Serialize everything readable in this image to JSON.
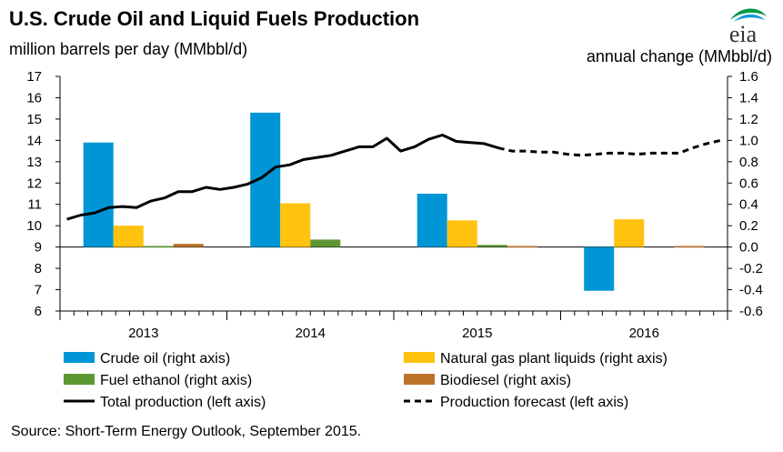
{
  "chart_data": {
    "type": "bar",
    "title": "U.S. Crude Oil and Liquid Fuels Production",
    "ylabel_left": "million barrels per day (MMbbl/d)",
    "ylabel_right": "annual change (MMbbl/d)",
    "source": "Source: Short-Term Energy Outlook, September 2015.",
    "logo_text": "eia",
    "ylim_left": [
      6,
      17
    ],
    "ylim_right": [
      -0.6,
      1.6
    ],
    "left_ticks": [
      "6",
      "7",
      "8",
      "9",
      "10",
      "11",
      "12",
      "13",
      "14",
      "15",
      "16",
      "17"
    ],
    "right_ticks": [
      "-0.6",
      "-0.4",
      "-0.2",
      "0.0",
      "0.2",
      "0.4",
      "0.6",
      "0.8",
      "1.0",
      "1.2",
      "1.4",
      "1.6"
    ],
    "categories": [
      "2013",
      "2014",
      "2015",
      "2016"
    ],
    "bar_series": [
      {
        "name": "Crude oil (right axis)",
        "color": "#0096d6",
        "values": [
          0.98,
          1.26,
          0.5,
          -0.41
        ]
      },
      {
        "name": "Natural gas plant liquids (right axis)",
        "color": "#ffc20e",
        "values": [
          0.2,
          0.41,
          0.25,
          0.26
        ]
      },
      {
        "name": "Fuel ethanol (right axis)",
        "color": "#5d9732",
        "values": [
          0.01,
          0.07,
          0.02,
          0.0
        ]
      },
      {
        "name": "Biodiesel (right axis)",
        "color": "#bd732a",
        "values": [
          0.03,
          0.0,
          0.01,
          0.01
        ]
      }
    ],
    "line_series": [
      {
        "name": "Total production (left axis)",
        "style": "solid",
        "color": "#000000",
        "x": [
          1,
          2,
          3,
          4,
          5,
          6,
          7,
          8,
          9,
          10,
          11,
          12,
          13,
          14,
          15,
          16,
          17,
          18,
          19,
          20,
          21,
          22,
          23,
          24,
          25,
          26,
          27,
          28,
          29,
          30,
          31,
          32
        ],
        "y": [
          10.3,
          10.5,
          10.6,
          10.85,
          10.9,
          10.85,
          11.15,
          11.3,
          11.6,
          11.6,
          11.8,
          11.7,
          11.8,
          11.95,
          12.25,
          12.75,
          12.85,
          13.1,
          13.2,
          13.3,
          13.5,
          13.7,
          13.7,
          14.1,
          13.5,
          13.7,
          14.05,
          14.25,
          13.95,
          13.9,
          13.85,
          13.65
        ]
      },
      {
        "name": "Production forecast (left axis)",
        "style": "dashed",
        "color": "#000000",
        "x": [
          32,
          33,
          34,
          35,
          36,
          37,
          38,
          39,
          40,
          41,
          42,
          43,
          44,
          45,
          46,
          47,
          48
        ],
        "y": [
          13.65,
          13.5,
          13.5,
          13.45,
          13.45,
          13.35,
          13.3,
          13.35,
          13.4,
          13.4,
          13.35,
          13.4,
          13.4,
          13.4,
          13.65,
          13.85,
          14.0
        ]
      }
    ],
    "months_per_year": 12,
    "grid": false,
    "legend_position": "bottom"
  }
}
